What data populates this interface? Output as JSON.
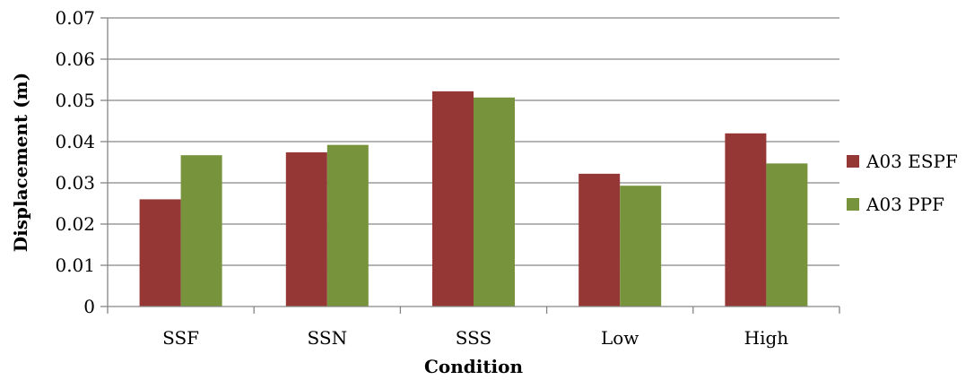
{
  "chart_data": {
    "type": "bar",
    "title": "",
    "xlabel": "Condition",
    "ylabel": "Displacement (m)",
    "categories": [
      "SSF",
      "SSN",
      "SSS",
      "Low",
      "High"
    ],
    "series": [
      {
        "name": "A03 ESPF",
        "values": [
          0.026,
          0.0374,
          0.0522,
          0.0322,
          0.042
        ],
        "color": "#953735"
      },
      {
        "name": "A03 PPF",
        "values": [
          0.0367,
          0.0392,
          0.0507,
          0.0293,
          0.0347
        ],
        "color": "#77933c"
      }
    ],
    "ylim": [
      0,
      0.07
    ],
    "yticks": [
      "0",
      "0.01",
      "0.02",
      "0.03",
      "0.04",
      "0.05",
      "0.06",
      "0.07"
    ],
    "grid": true,
    "legend_position": "right"
  }
}
